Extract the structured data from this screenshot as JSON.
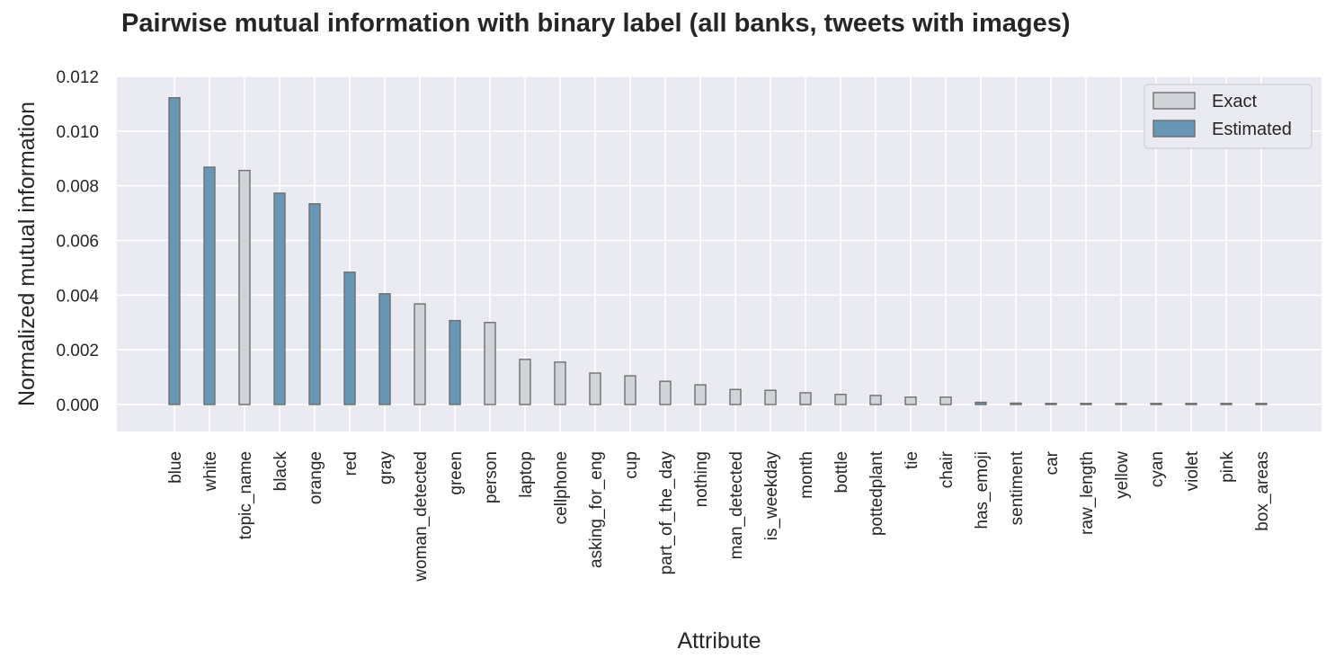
{
  "chart_data": {
    "type": "bar",
    "title": "Pairwise mutual information with binary label (all banks, tweets with images)",
    "xlabel": "Attribute",
    "ylabel": "Normalized mutual information",
    "ylim": [
      -0.00095,
      0.012
    ],
    "yticks": [
      "0.000",
      "0.002",
      "0.004",
      "0.006",
      "0.008",
      "0.010",
      "0.012"
    ],
    "ytick_values": [
      0,
      0.002,
      0.004,
      0.006,
      0.008,
      0.01,
      0.012
    ],
    "grid": true,
    "legend_position": "top-right",
    "series_styles": {
      "Exact": {
        "fill": "#d0d4d9",
        "stroke": "#6f6f6f"
      },
      "Estimated": {
        "fill": "#6897b5",
        "stroke": "#6f6f6f"
      }
    },
    "background": "#eaeaf2",
    "legend": [
      "Exact",
      "Estimated"
    ],
    "bars": [
      {
        "category": "blue",
        "value": 0.01122,
        "series": "Estimated"
      },
      {
        "category": "white",
        "value": 0.00868,
        "series": "Estimated"
      },
      {
        "category": "topic_name",
        "value": 0.00856,
        "series": "Exact"
      },
      {
        "category": "black",
        "value": 0.00773,
        "series": "Estimated"
      },
      {
        "category": "orange",
        "value": 0.00734,
        "series": "Estimated"
      },
      {
        "category": "red",
        "value": 0.00484,
        "series": "Estimated"
      },
      {
        "category": "gray",
        "value": 0.00405,
        "series": "Estimated"
      },
      {
        "category": "woman_detected",
        "value": 0.00368,
        "series": "Exact"
      },
      {
        "category": "green",
        "value": 0.00307,
        "series": "Estimated"
      },
      {
        "category": "person",
        "value": 0.003,
        "series": "Exact"
      },
      {
        "category": "laptop",
        "value": 0.00165,
        "series": "Exact"
      },
      {
        "category": "cellphone",
        "value": 0.00155,
        "series": "Exact"
      },
      {
        "category": "asking_for_eng",
        "value": 0.00115,
        "series": "Exact"
      },
      {
        "category": "cup",
        "value": 0.00105,
        "series": "Exact"
      },
      {
        "category": "part_of_the_day",
        "value": 0.00085,
        "series": "Exact"
      },
      {
        "category": "nothing",
        "value": 0.00072,
        "series": "Exact"
      },
      {
        "category": "man_detected",
        "value": 0.00055,
        "series": "Exact"
      },
      {
        "category": "is_weekday",
        "value": 0.00052,
        "series": "Exact"
      },
      {
        "category": "month",
        "value": 0.00043,
        "series": "Exact"
      },
      {
        "category": "bottle",
        "value": 0.00037,
        "series": "Exact"
      },
      {
        "category": "pottedplant",
        "value": 0.00033,
        "series": "Exact"
      },
      {
        "category": "tie",
        "value": 0.00027,
        "series": "Exact"
      },
      {
        "category": "chair",
        "value": 0.00027,
        "series": "Exact"
      },
      {
        "category": "has_emoji",
        "value": 8e-05,
        "series": "Estimated"
      },
      {
        "category": "sentiment",
        "value": 5e-05,
        "series": "Exact"
      },
      {
        "category": "car",
        "value": 2e-05,
        "series": "Exact"
      },
      {
        "category": "raw_length",
        "value": 2e-05,
        "series": "Exact"
      },
      {
        "category": "yellow",
        "value": 2e-05,
        "series": "Exact"
      },
      {
        "category": "cyan",
        "value": 2e-05,
        "series": "Exact"
      },
      {
        "category": "violet",
        "value": 2e-05,
        "series": "Exact"
      },
      {
        "category": "pink",
        "value": 2e-05,
        "series": "Exact"
      },
      {
        "category": "box_areas",
        "value": 2e-05,
        "series": "Exact"
      }
    ]
  }
}
